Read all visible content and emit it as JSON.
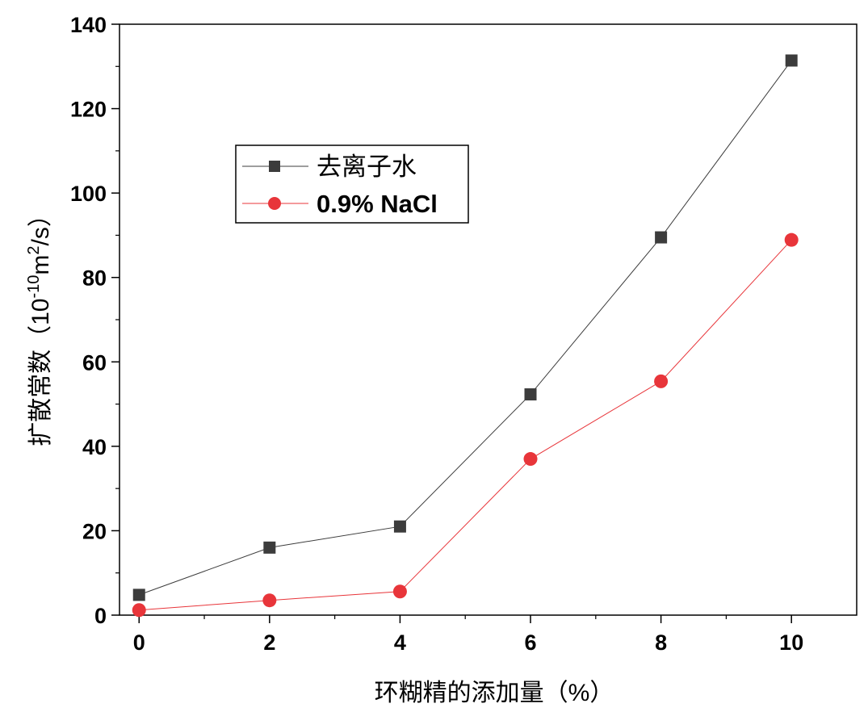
{
  "chart_data": {
    "type": "line",
    "xlabel": "环糊精的添加量（%）",
    "ylabel_main": "扩散常数（10",
    "ylabel_sup1": "-10",
    "ylabel_mid": "m",
    "ylabel_sup2": "2",
    "ylabel_end": "/s）",
    "xlim": [
      -0.3,
      11
    ],
    "ylim": [
      0,
      140
    ],
    "xticks": [
      0,
      2,
      4,
      6,
      8,
      10
    ],
    "yticks": [
      0,
      20,
      40,
      60,
      80,
      100,
      120,
      140
    ],
    "x": [
      0,
      2,
      4,
      6,
      8,
      10
    ],
    "series": [
      {
        "name": "去离子水",
        "marker": "square",
        "color": "#3c3c3c",
        "values": [
          4.8,
          16.0,
          21.0,
          52.3,
          89.5,
          131.4
        ]
      },
      {
        "name": "0.9% NaCl",
        "marker": "circle",
        "color": "#e8353a",
        "values": [
          1.2,
          3.5,
          5.6,
          37.0,
          55.4,
          88.9
        ]
      }
    ],
    "legend_position": "upper-left",
    "grid": false
  }
}
